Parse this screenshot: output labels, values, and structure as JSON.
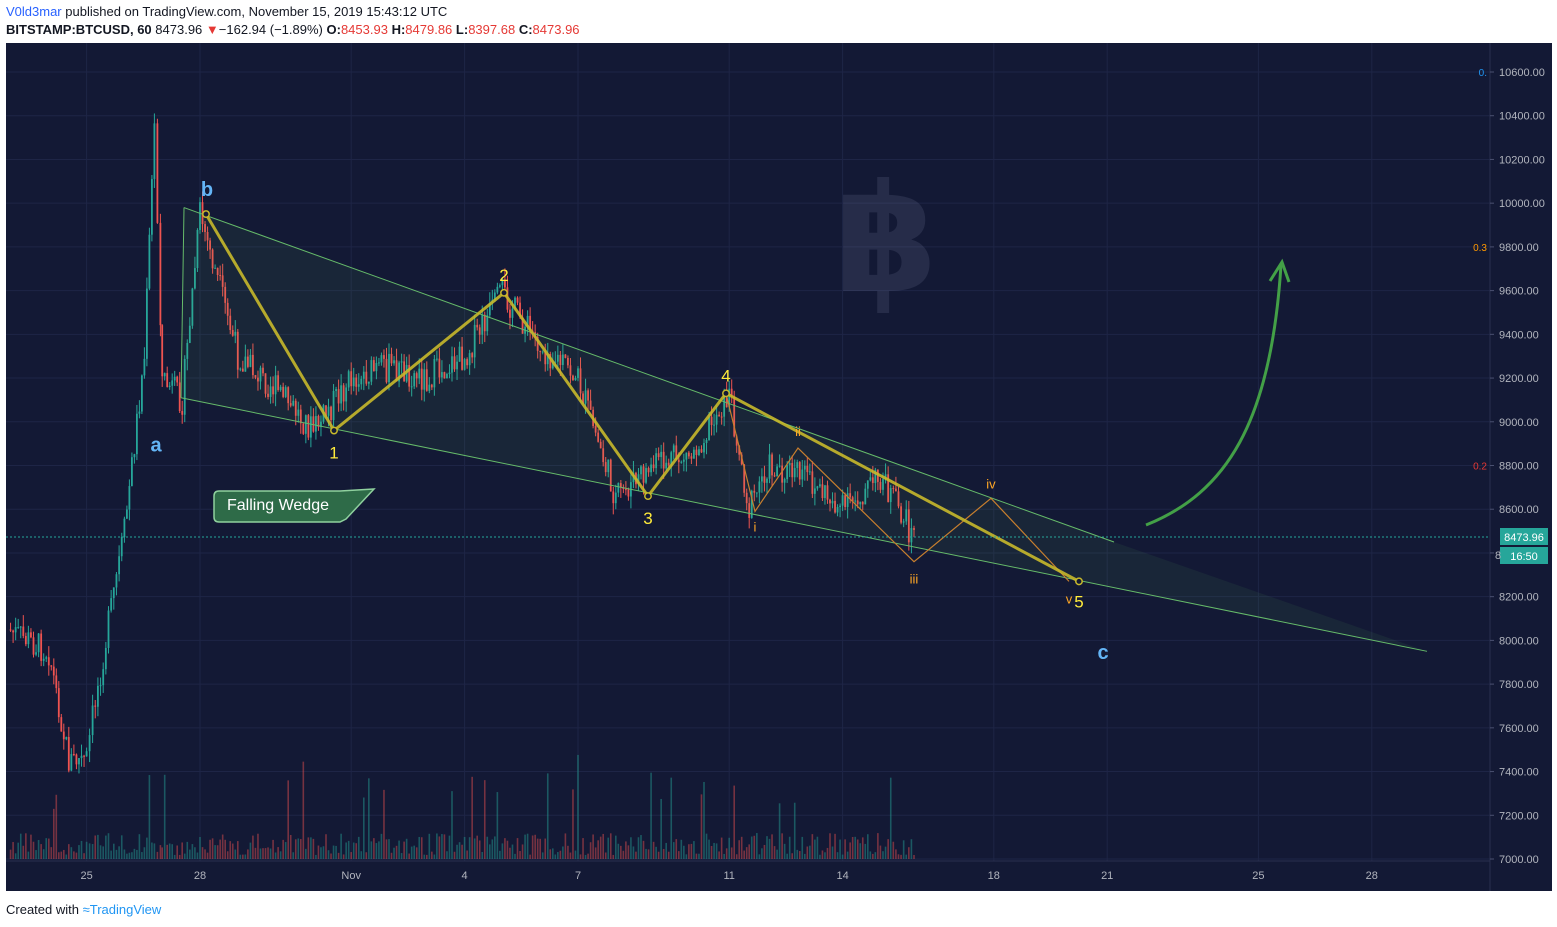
{
  "header": {
    "author": "V0ld3mar",
    "published_text": "published on TradingView.com, November 15, 2019 15:43:12 UTC",
    "symbol": "BITSTAMP:BTCUSD, 60",
    "last": "8473.96",
    "change": "−162.94 (−1.89%)",
    "o_label": "O:",
    "o": "8453.93",
    "h_label": "H:",
    "h": "8479.86",
    "l_label": "L:",
    "l": "8397.68",
    "c_label": "C:",
    "c": "8473.96"
  },
  "footer": {
    "created_with": "Created with",
    "brand": "TradingView"
  },
  "colors": {
    "background": "#131935",
    "up": "#26a69a",
    "down": "#ef5350",
    "wave": "#c8b92b",
    "subwave": "#c87f2e",
    "wedge": "#66bb6a",
    "label_yellow": "#ffeb3b",
    "label_blue": "#64b5f6",
    "label_orange": "#ffa726",
    "arrow": "#4caf50"
  },
  "chart_data": {
    "type": "candlestick",
    "timeframe": "60",
    "price_axis": {
      "ylim": [
        7000,
        10700
      ],
      "tick_labels": [
        "10600.00",
        "10400.00",
        "10200.00",
        "10000.00",
        "9800.00",
        "9600.00",
        "9400.00",
        "9200.00",
        "9000.00",
        "8800.00",
        "8600.00",
        "8400.00",
        "8200.00",
        "8000.00",
        "7800.00",
        "7600.00",
        "7400.00",
        "7200.00",
        "7000.00"
      ]
    },
    "time_axis": {
      "tick_labels": [
        "25",
        "28",
        "Nov",
        "4",
        "7",
        "11",
        "14",
        "18",
        "21",
        "25",
        "28"
      ]
    },
    "last_price": "8473.96",
    "countdown": "16:50",
    "fib_labels": [
      {
        "text": "0.",
        "price": 10600
      },
      {
        "text": "0.3",
        "price": 9800
      },
      {
        "text": "0.2",
        "price": 8800
      }
    ],
    "ohlc_path": [
      {
        "date": "Oct 23",
        "price": 8050
      },
      {
        "date": "Oct 24",
        "price": 7950
      },
      {
        "date": "Oct 24",
        "price": 7450
      },
      {
        "date": "Oct 25",
        "price": 7450
      },
      {
        "date": "Oct 25",
        "price": 7650
      },
      {
        "date": "Oct 26",
        "price": 8500
      },
      {
        "date": "Oct 26",
        "price": 9300
      },
      {
        "date": "Oct 26",
        "price": 10350
      },
      {
        "date": "Oct 26",
        "price": 9500
      },
      {
        "date": "Oct 27",
        "price": 9200
      },
      {
        "date": "Oct 27",
        "price": 9100
      },
      {
        "date": "Oct 28",
        "price": 9950
      },
      {
        "date": "Oct 29",
        "price": 9300
      },
      {
        "date": "Oct 30",
        "price": 9150
      },
      {
        "date": "Oct 31",
        "price": 8960
      },
      {
        "date": "Nov 1",
        "price": 9200
      },
      {
        "date": "Nov 2",
        "price": 9250
      },
      {
        "date": "Nov 3",
        "price": 9200
      },
      {
        "date": "Nov 4",
        "price": 9300
      },
      {
        "date": "Nov 5",
        "price": 9590
      },
      {
        "date": "Nov 6",
        "price": 9350
      },
      {
        "date": "Nov 7",
        "price": 9200
      },
      {
        "date": "Nov 8",
        "price": 8650
      },
      {
        "date": "Nov 9",
        "price": 8800
      },
      {
        "date": "Nov 10",
        "price": 8850
      },
      {
        "date": "Nov 11",
        "price": 9130
      },
      {
        "date": "Nov 11",
        "price": 8600
      },
      {
        "date": "Nov 12",
        "price": 8800
      },
      {
        "date": "Nov 13",
        "price": 8750
      },
      {
        "date": "Nov 14",
        "price": 8600
      },
      {
        "date": "Nov 15",
        "price": 8750
      },
      {
        "date": "Nov 15",
        "price": 8473
      }
    ],
    "wedge": {
      "upper": [
        {
          "date": "Oct 27",
          "price": 9980
        },
        {
          "date": "Nov 21",
          "price": 8450
        }
      ],
      "lower": [
        {
          "date": "Oct 27",
          "price": 9110
        },
        {
          "date": "Nov 29",
          "price": 7950
        }
      ]
    },
    "elliott_main": [
      {
        "label": "b",
        "date": "Oct 28",
        "price": 9950
      },
      {
        "label": "1",
        "date": "Oct 31",
        "price": 8960
      },
      {
        "label": "2",
        "date": "Nov 5",
        "price": 9590
      },
      {
        "label": "3",
        "date": "Nov 8",
        "price": 8660
      },
      {
        "label": "4",
        "date": "Nov 10",
        "price": 9130
      },
      {
        "label": "5",
        "date": "Nov 20",
        "price": 8270
      }
    ],
    "elliott_sub": [
      {
        "label": "",
        "date": "Nov 10",
        "price": 9130
      },
      {
        "label": "i",
        "date": "Nov 11",
        "price": 8590
      },
      {
        "label": "ii",
        "date": "Nov 12",
        "price": 8880
      },
      {
        "label": "iii",
        "date": "Nov 15",
        "price": 8360
      },
      {
        "label": "iv",
        "date": "Nov 17",
        "price": 8650
      },
      {
        "label": "v",
        "date": "Nov 20",
        "price": 8270
      }
    ],
    "corrective_labels": [
      {
        "label": "a",
        "date": "Oct 27",
        "price": 8900
      },
      {
        "label": "b",
        "date": "Oct 28",
        "price": 9950
      },
      {
        "label": "c",
        "date": "Nov 20",
        "price": 8080
      }
    ],
    "annotation": "Falling Wedge",
    "projection": "upward arrow from ~8650 (Nov 21) toward ~9750 (Nov 25)"
  }
}
